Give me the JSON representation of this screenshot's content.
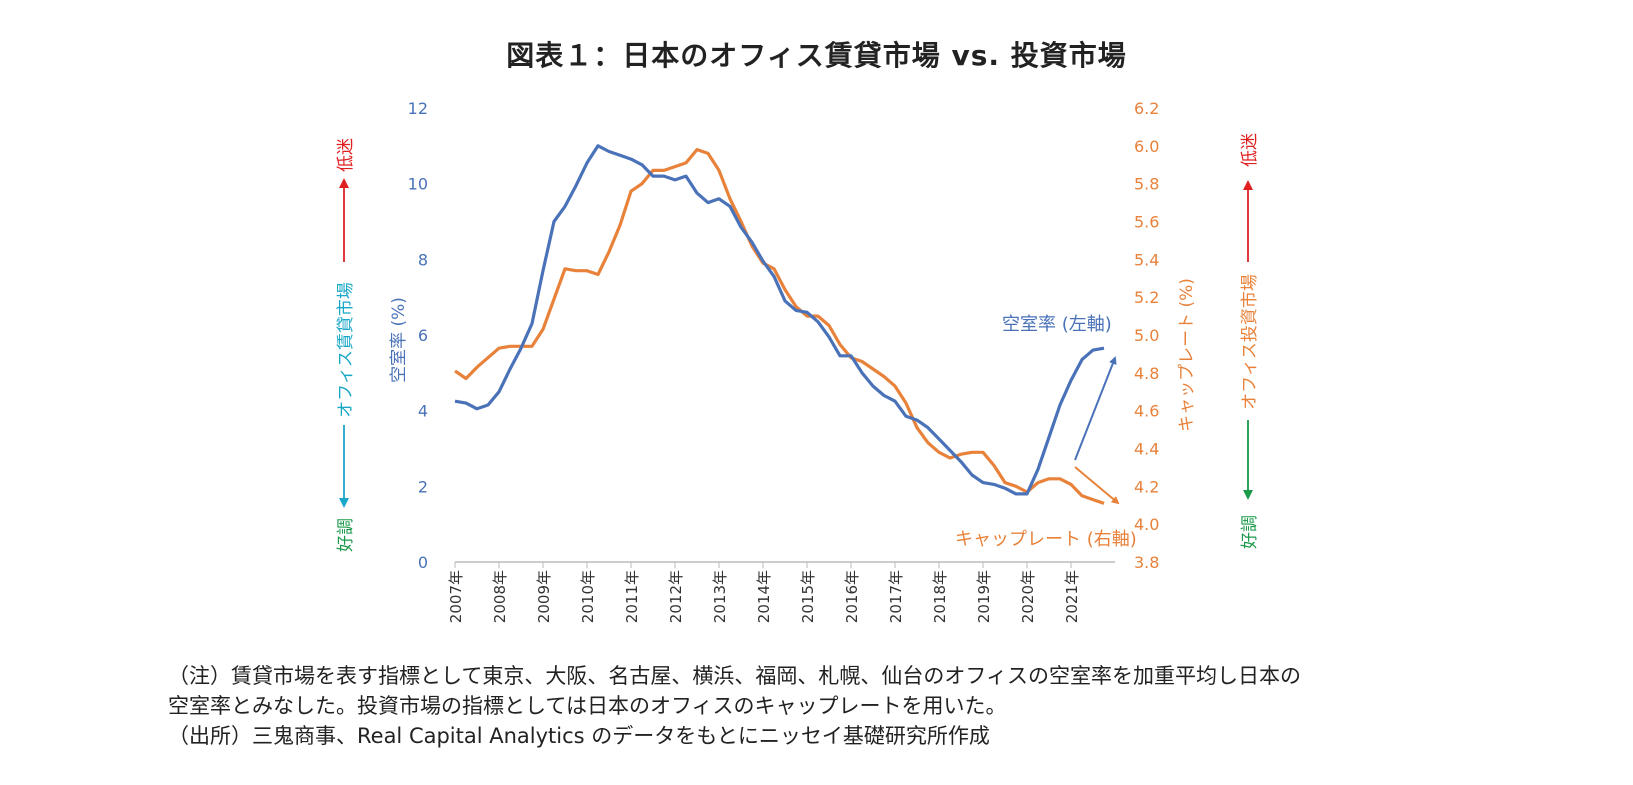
{
  "title": "図表１：日本のオフィス賃貸市場 vs. 投資市場",
  "colors": {
    "vacancy": "#4a72b8",
    "caprate": "#e8823a",
    "red": "#e02020",
    "teal": "#1aa8c8",
    "green": "#1a9a4a",
    "axis": "#bbbbbb"
  },
  "left_side": {
    "market_label": "オフィス賃貸市場",
    "weak_label": "低迷",
    "strong_label": "好調"
  },
  "right_side": {
    "market_label": "オフィス投資市場",
    "weak_label": "低迷",
    "strong_label": "好調"
  },
  "series_labels": {
    "vacancy": "空室率 (左軸)",
    "caprate": "キャップレート (右軸)"
  },
  "notes": {
    "line1": "（注）賃貸市場を表す指標として東京、大阪、名古屋、横浜、福岡、札幌、仙台のオフィスの空室率を加重平均し日本の",
    "line2": "空室率とみなした。投資市場の指標としては日本のオフィスのキャップレートを用いた。",
    "line3": "（出所）三鬼商事、Real Capital Analytics のデータをもとにニッセイ基礎研究所作成"
  },
  "chart_data": {
    "type": "line",
    "x_tick_labels": [
      "2007年",
      "2008年",
      "2009年",
      "2010年",
      "2011年",
      "2012年",
      "2013年",
      "2014年",
      "2015年",
      "2016年",
      "2017年",
      "2018年",
      "2019年",
      "2020年",
      "2021年"
    ],
    "y_left": {
      "label": "空室率 (%)",
      "range": [
        0,
        12
      ],
      "ticks": [
        "0",
        "2",
        "4",
        "6",
        "8",
        "10",
        "12"
      ]
    },
    "y_right": {
      "label": "キャップレート (%)",
      "range": [
        3.8,
        6.2
      ],
      "ticks": [
        "3.8",
        "4.0",
        "4.2",
        "4.4",
        "4.6",
        "4.8",
        "5.0",
        "5.2",
        "5.4",
        "5.6",
        "5.8",
        "6.0",
        "6.2"
      ]
    },
    "grid": false,
    "x_start": 2007.0,
    "x_step": 0.25,
    "series": [
      {
        "name": "空室率 (左軸)",
        "axis": "left",
        "values": [
          4.25,
          4.2,
          4.05,
          4.15,
          4.5,
          5.1,
          5.65,
          6.3,
          7.7,
          9.0,
          9.4,
          9.95,
          10.55,
          11.0,
          10.85,
          10.75,
          10.65,
          10.5,
          10.2,
          10.2,
          10.1,
          10.2,
          9.75,
          9.5,
          9.6,
          9.4,
          8.85,
          8.45,
          7.95,
          7.55,
          6.9,
          6.65,
          6.6,
          6.35,
          5.95,
          5.45,
          5.45,
          5.0,
          4.65,
          4.4,
          4.25,
          3.85,
          3.75,
          3.55,
          3.25,
          2.95,
          2.65,
          2.3,
          2.1,
          2.05,
          1.95,
          1.8,
          1.8,
          2.45,
          3.3,
          4.15,
          4.8,
          5.35,
          5.6,
          5.65
        ]
      },
      {
        "name": "キャップレート (右軸)",
        "axis": "right",
        "values": [
          4.81,
          4.77,
          4.83,
          4.88,
          4.93,
          4.94,
          4.94,
          4.94,
          5.03,
          5.19,
          5.35,
          5.34,
          5.34,
          5.32,
          5.44,
          5.58,
          5.76,
          5.8,
          5.87,
          5.87,
          5.89,
          5.91,
          5.98,
          5.96,
          5.87,
          5.72,
          5.6,
          5.47,
          5.38,
          5.35,
          5.24,
          5.15,
          5.1,
          5.1,
          5.05,
          4.95,
          4.88,
          4.86,
          4.82,
          4.78,
          4.73,
          4.64,
          4.51,
          4.43,
          4.38,
          4.35,
          4.37,
          4.38,
          4.38,
          4.31,
          4.22,
          4.2,
          4.17,
          4.22,
          4.24,
          4.24,
          4.21,
          4.15,
          4.13,
          4.11
        ]
      }
    ]
  }
}
